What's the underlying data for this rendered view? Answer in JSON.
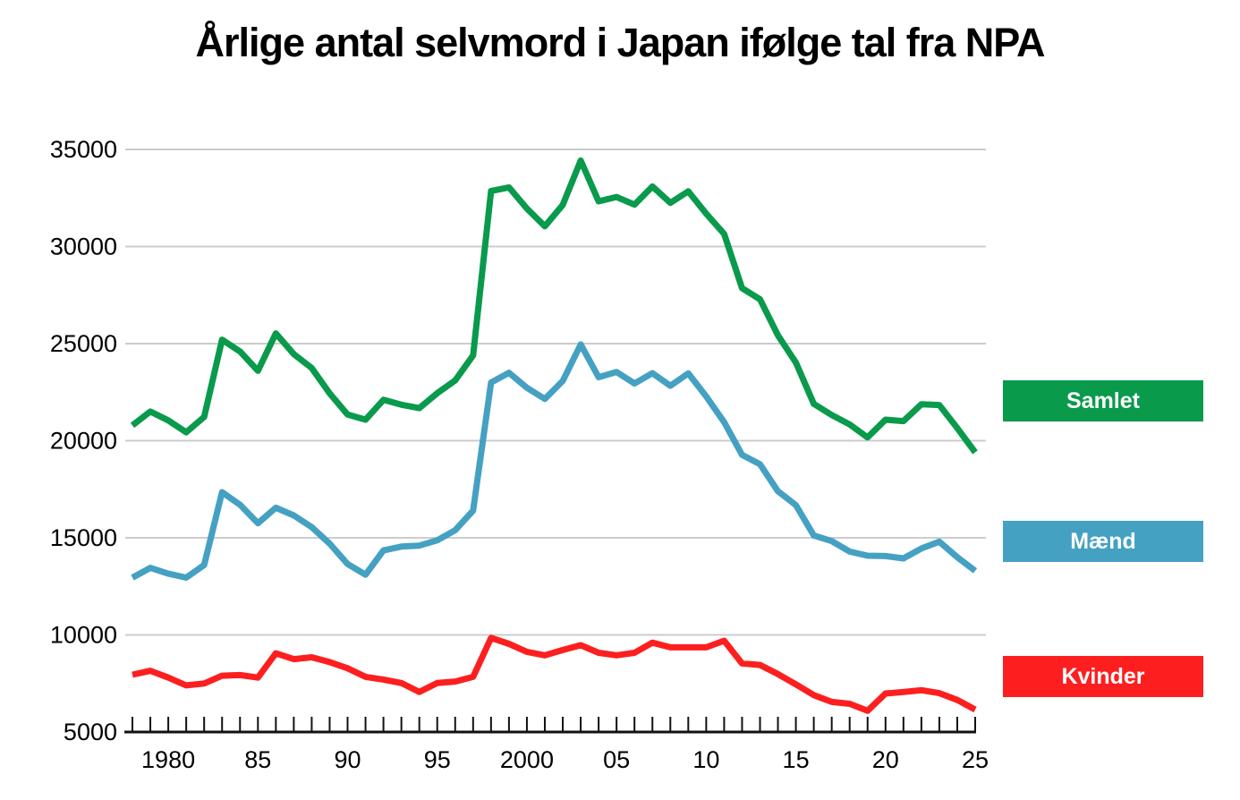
{
  "title": "Årlige antal selvmord i Japan ifølge tal fra NPA",
  "colors": {
    "samlet": "#099a4c",
    "maend": "#45a1c2",
    "kvinder": "#fd1f1f",
    "grid": "#cccccc",
    "axis": "#111111",
    "text": "#000000",
    "background": "#ffffff"
  },
  "legend": [
    {
      "id": "samlet",
      "label": "Samlet"
    },
    {
      "id": "maend",
      "label": "Mænd"
    },
    {
      "id": "kvinder",
      "label": "Kvinder"
    }
  ],
  "chart_data": {
    "type": "line",
    "title": "Årlige antal selvmord i Japan ifølge tal fra NPA",
    "xlabel": "",
    "ylabel": "",
    "xlim": [
      1978,
      2025
    ],
    "ylim": [
      5000,
      35000
    ],
    "grid": "horizontal",
    "legend_position": "right",
    "x": [
      1978,
      1979,
      1980,
      1981,
      1982,
      1983,
      1984,
      1985,
      1986,
      1987,
      1988,
      1989,
      1990,
      1991,
      1992,
      1993,
      1994,
      1995,
      1996,
      1997,
      1998,
      1999,
      2000,
      2001,
      2002,
      2003,
      2004,
      2005,
      2006,
      2007,
      2008,
      2009,
      2010,
      2011,
      2012,
      2013,
      2014,
      2015,
      2016,
      2017,
      2018,
      2019,
      2020,
      2021,
      2022,
      2023,
      2024,
      2025
    ],
    "xticks": [
      {
        "x": 1980,
        "label": "1980"
      },
      {
        "x": 1985,
        "label": "85"
      },
      {
        "x": 1990,
        "label": "90"
      },
      {
        "x": 1995,
        "label": "95"
      },
      {
        "x": 2000,
        "label": "2000"
      },
      {
        "x": 2005,
        "label": "05"
      },
      {
        "x": 2010,
        "label": "10"
      },
      {
        "x": 2015,
        "label": "15"
      },
      {
        "x": 2020,
        "label": "20"
      },
      {
        "x": 2025,
        "label": "25"
      }
    ],
    "yticks": [
      {
        "v": 5000,
        "label": "5000"
      },
      {
        "v": 10000,
        "label": "10000"
      },
      {
        "v": 15000,
        "label": "15000"
      },
      {
        "v": 20000,
        "label": "20000"
      },
      {
        "v": 25000,
        "label": "25000"
      },
      {
        "v": 30000,
        "label": "30000"
      },
      {
        "v": 35000,
        "label": "35000"
      }
    ],
    "series": [
      {
        "name": "Samlet",
        "color_key": "samlet",
        "values": [
          20788,
          21503,
          21048,
          20434,
          21228,
          25202,
          24596,
          23599,
          25524,
          24460,
          23742,
          22436,
          21346,
          21084,
          22104,
          21851,
          21679,
          22445,
          23104,
          24391,
          32863,
          33048,
          31957,
          31042,
          32143,
          34427,
          32325,
          32552,
          32155,
          33093,
          32249,
          32845,
          31690,
          30651,
          27858,
          27283,
          25427,
          24025,
          21897,
          21321,
          20840,
          20169,
          21081,
          21007,
          21881,
          21837,
          20650,
          19400
        ]
      },
      {
        "name": "Mænd",
        "color_key": "maend",
        "values": [
          12950,
          13450,
          13150,
          12950,
          13600,
          17350,
          16700,
          15750,
          16550,
          16150,
          15550,
          14700,
          13650,
          13100,
          14350,
          14550,
          14600,
          14870,
          15390,
          16400,
          23000,
          23500,
          22730,
          22150,
          23080,
          24960,
          23270,
          23540,
          22950,
          23480,
          22830,
          23470,
          22280,
          20960,
          19270,
          18790,
          17400,
          16680,
          15120,
          14830,
          14290,
          14080,
          14060,
          13940,
          14450,
          14800,
          14000,
          13300
        ]
      },
      {
        "name": "Kvinder",
        "color_key": "kvinder",
        "values": [
          7950,
          8150,
          7800,
          7400,
          7500,
          7900,
          7930,
          7800,
          9050,
          8750,
          8850,
          8600,
          8280,
          7840,
          7700,
          7520,
          7060,
          7520,
          7600,
          7840,
          9850,
          9540,
          9130,
          8950,
          9220,
          9470,
          9080,
          8950,
          9080,
          9600,
          9360,
          9360,
          9360,
          9700,
          8530,
          8450,
          7980,
          7450,
          6900,
          6550,
          6450,
          6090,
          6980,
          7060,
          7150,
          7000,
          6650,
          6150
        ]
      }
    ]
  }
}
